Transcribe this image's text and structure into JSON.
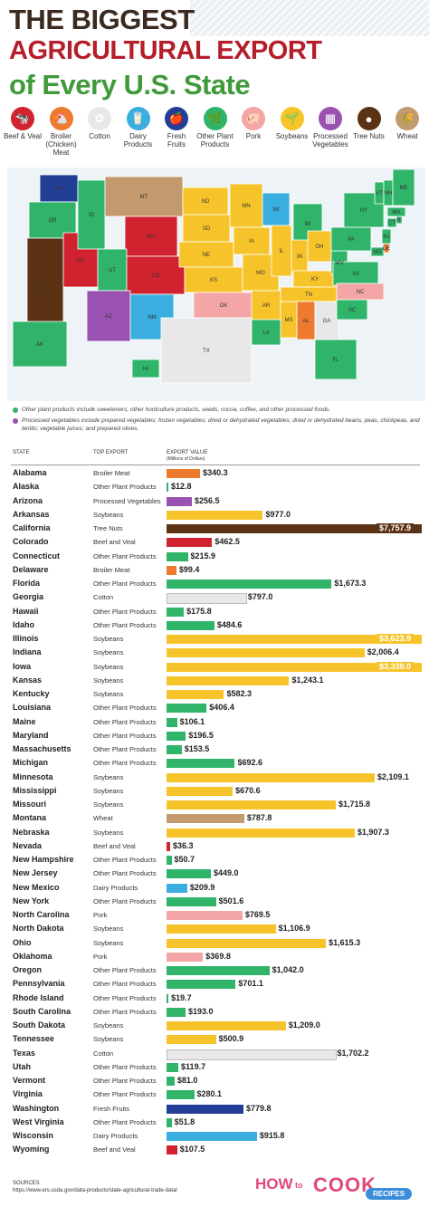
{
  "title": {
    "line1": "THE BIGGEST",
    "line2": "AGRICULTURAL EXPORT",
    "line3": "of Every U.S. State"
  },
  "legend": [
    {
      "label": "Beef & Veal",
      "color": "#d1232f",
      "icon": "cow-icon",
      "glyph": "🐄"
    },
    {
      "label": "Broiler (Chicken) Meat",
      "color": "#ee7a30",
      "icon": "chicken-icon",
      "glyph": "🐔"
    },
    {
      "label": "Cotton",
      "color": "#e8e8e8",
      "icon": "cotton-icon",
      "glyph": "✿"
    },
    {
      "label": "Dairy Products",
      "color": "#3aaedf",
      "icon": "milk-icon",
      "glyph": "🥛"
    },
    {
      "label": "Fresh Fruits",
      "color": "#223f96",
      "icon": "apple-icon",
      "glyph": "🍎"
    },
    {
      "label": "Other Plant Products",
      "color": "#2fb46a",
      "icon": "leaf-icon",
      "glyph": "🌿"
    },
    {
      "label": "Pork",
      "color": "#f4a5a5",
      "icon": "pig-icon",
      "glyph": "🐖"
    },
    {
      "label": "Soybeans",
      "color": "#f6c42a",
      "icon": "soybean-icon",
      "glyph": "🌱"
    },
    {
      "label": "Processed Vegetables",
      "color": "#9a52b0",
      "icon": "can-icon",
      "glyph": "▦"
    },
    {
      "label": "Tree Nuts",
      "color": "#5c3214",
      "icon": "nut-icon",
      "glyph": "●"
    },
    {
      "label": "Wheat",
      "color": "#c29a6e",
      "icon": "wheat-icon",
      "glyph": "🌾"
    }
  ],
  "map_labels": [
    "WA",
    "OR",
    "ID",
    "MT",
    "WY",
    "ND",
    "SD",
    "NE",
    "MN",
    "WI",
    "MI",
    "IA",
    "IL",
    "IN",
    "OH",
    "PA",
    "NY",
    "VT",
    "NH",
    "ME",
    "MA",
    "RI",
    "CT",
    "NJ",
    "DE",
    "MD",
    "VA",
    "WV",
    "KY",
    "TN",
    "NC",
    "SC",
    "GA",
    "AL",
    "MS",
    "LA",
    "AR",
    "MO",
    "KS",
    "OK",
    "TX",
    "NM",
    "AZ",
    "CO",
    "UT",
    "NV",
    "CA",
    "AK",
    "HI",
    "FL"
  ],
  "notes": [
    {
      "color": "#2fb46a",
      "text": "Other plant products include sweeteners, other horticulture products, seeds, cocoa, coffee, and other processed foods."
    },
    {
      "color": "#9a52b0",
      "text": "Processed vegetables include prepared vegetables; frozen vegetables; dried or dehydrated vegetables; dried or dehydrated beans, peas, chickpeas, and lentils; vegetable juices; and prepared olives."
    }
  ],
  "table_header": {
    "state": "STATE",
    "export": "TOP EXPORT",
    "value": "EXPORT VALUE",
    "value_unit": "(Millions of Dollars)"
  },
  "colors": {
    "Beef and Veal": "#d1232f",
    "Broiler Meat": "#ee7a30",
    "Cotton": "#e8e8e8",
    "Dairy Products": "#3aaedf",
    "Fresh Fruits": "#223f96",
    "Other Plant Products": "#2fb46a",
    "Pork": "#f4a5a5",
    "Soybeans": "#f6c42a",
    "Processed Vegetables": "#9a52b0",
    "Tree Nuts": "#5c3214",
    "Wheat": "#c29a6e"
  },
  "chart_data": {
    "type": "bar",
    "orientation": "horizontal",
    "columns": [
      "State",
      "Top Export",
      "Export Value"
    ],
    "rows": [
      {
        "state": "Alabama",
        "export": "Broiler Meat",
        "value": 340.3,
        "label": "$340.3"
      },
      {
        "state": "Alaska",
        "export": "Other Plant Products",
        "value": 12.8,
        "label": "$12.8"
      },
      {
        "state": "Arizona",
        "export": "Processed Vegetables",
        "value": 256.5,
        "label": "$256.5"
      },
      {
        "state": "Arkansas",
        "export": "Soybeans",
        "value": 977.0,
        "label": "$977.0"
      },
      {
        "state": "California",
        "export": "Tree Nuts",
        "value": 7757.9,
        "label": "$7,757.9"
      },
      {
        "state": "Colorado",
        "export": "Beef and Veal",
        "value": 462.5,
        "label": "$462.5"
      },
      {
        "state": "Connecticut",
        "export": "Other Plant Products",
        "value": 215.9,
        "label": "$215.9"
      },
      {
        "state": "Delaware",
        "export": "Broiler Meat",
        "value": 99.4,
        "label": "$99.4"
      },
      {
        "state": "Florida",
        "export": "Other Plant Products",
        "value": 1673.3,
        "label": "$1,673.3"
      },
      {
        "state": "Georgia",
        "export": "Cotton",
        "value": 797.0,
        "label": "$797.0"
      },
      {
        "state": "Hawaii",
        "export": "Other Plant Products",
        "value": 175.8,
        "label": "$175.8"
      },
      {
        "state": "Idaho",
        "export": "Other Plant Products",
        "value": 484.6,
        "label": "$484.6"
      },
      {
        "state": "Illinois",
        "export": "Soybeans",
        "value": 3623.9,
        "label": "$3,623.9"
      },
      {
        "state": "Indiana",
        "export": "Soybeans",
        "value": 2006.4,
        "label": "$2,006.4"
      },
      {
        "state": "Iowa",
        "export": "Soybeans",
        "value": 3339.0,
        "label": "$3,339.0"
      },
      {
        "state": "Kansas",
        "export": "Soybeans",
        "value": 1243.1,
        "label": "$1,243.1"
      },
      {
        "state": "Kentucky",
        "export": "Soybeans",
        "value": 582.3,
        "label": "$582.3"
      },
      {
        "state": "Louisiana",
        "export": "Other Plant Products",
        "value": 406.4,
        "label": "$406.4"
      },
      {
        "state": "Maine",
        "export": "Other Plant Products",
        "value": 106.1,
        "label": "$106.1"
      },
      {
        "state": "Maryland",
        "export": "Other Plant Products",
        "value": 196.5,
        "label": "$196.5"
      },
      {
        "state": "Massachusetts",
        "export": "Other Plant Products",
        "value": 153.5,
        "label": "$153.5"
      },
      {
        "state": "Michigan",
        "export": "Other Plant Products",
        "value": 692.6,
        "label": "$692.6"
      },
      {
        "state": "Minnesota",
        "export": "Soybeans",
        "value": 2109.1,
        "label": "$2,109.1"
      },
      {
        "state": "Mississippi",
        "export": "Soybeans",
        "value": 670.6,
        "label": "$670.6"
      },
      {
        "state": "Missouri",
        "export": "Soybeans",
        "value": 1715.8,
        "label": "$1,715.8"
      },
      {
        "state": "Montana",
        "export": "Wheat",
        "value": 787.8,
        "label": "$787.8"
      },
      {
        "state": "Nebraska",
        "export": "Soybeans",
        "value": 1907.3,
        "label": "$1,907.3"
      },
      {
        "state": "Nevada",
        "export": "Beef and Veal",
        "value": 36.3,
        "label": "$36.3"
      },
      {
        "state": "New Hampshire",
        "export": "Other Plant Products",
        "value": 50.7,
        "label": "$50.7"
      },
      {
        "state": "New Jersey",
        "export": "Other Plant Products",
        "value": 449.0,
        "label": "$449.0"
      },
      {
        "state": "New Mexico",
        "export": "Dairy Products",
        "value": 209.9,
        "label": "$209.9"
      },
      {
        "state": "New York",
        "export": "Other Plant Products",
        "value": 501.6,
        "label": "$501.6"
      },
      {
        "state": "North Carolina",
        "export": "Pork",
        "value": 769.5,
        "label": "$769.5"
      },
      {
        "state": "North Dakota",
        "export": "Soybeans",
        "value": 1106.9,
        "label": "$1,106.9"
      },
      {
        "state": "Ohio",
        "export": "Soybeans",
        "value": 1615.3,
        "label": "$1,615.3"
      },
      {
        "state": "Oklahoma",
        "export": "Pork",
        "value": 369.8,
        "label": "$369.8"
      },
      {
        "state": "Oregon",
        "export": "Other Plant Products",
        "value": 1042.0,
        "label": "$1,042.0"
      },
      {
        "state": "Pennsylvania",
        "export": "Other Plant Products",
        "value": 701.1,
        "label": "$701.1"
      },
      {
        "state": "Rhode Island",
        "export": "Other Plant Products",
        "value": 19.7,
        "label": "$19.7"
      },
      {
        "state": "South Carolina",
        "export": "Other Plant Products",
        "value": 193.0,
        "label": "$193.0"
      },
      {
        "state": "South Dakota",
        "export": "Soybeans",
        "value": 1209.0,
        "label": "$1,209.0"
      },
      {
        "state": "Tennessee",
        "export": "Soybeans",
        "value": 500.9,
        "label": "$500.9"
      },
      {
        "state": "Texas",
        "export": "Cotton",
        "value": 1702.2,
        "label": "$1,702.2"
      },
      {
        "state": "Utah",
        "export": "Other Plant Products",
        "value": 119.7,
        "label": "$119.7"
      },
      {
        "state": "Vermont",
        "export": "Other Plant Products",
        "value": 81.0,
        "label": "$81.0"
      },
      {
        "state": "Virginia",
        "export": "Other Plant Products",
        "value": 280.1,
        "label": "$280.1"
      },
      {
        "state": "Washington",
        "export": "Fresh Fruits",
        "value": 779.8,
        "label": "$779.8"
      },
      {
        "state": "West Virginia",
        "export": "Other Plant Products",
        "value": 51.8,
        "label": "$51.8"
      },
      {
        "state": "Wisconsin",
        "export": "Dairy Products",
        "value": 915.8,
        "label": "$915.8"
      },
      {
        "state": "Wyoming",
        "export": "Beef and Veal",
        "value": 107.5,
        "label": "$107.5"
      }
    ]
  },
  "sources": {
    "heading": "SOURCES",
    "url": "https://www.ers.usda.gov/data-products/state-agricultural-trade-data/"
  },
  "logo": {
    "how": "HOW",
    "to": "to",
    "cook": "COOK",
    "recipes": "RECIPES"
  }
}
